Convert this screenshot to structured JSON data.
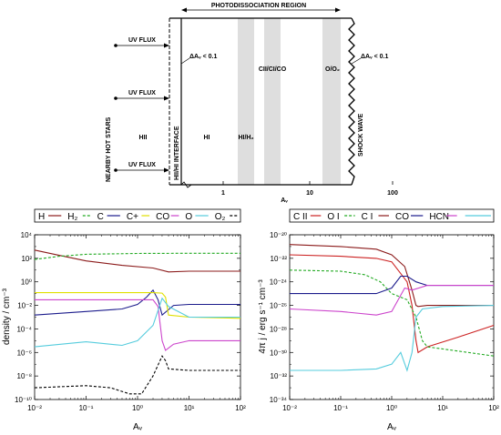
{
  "diagram": {
    "top_label": "PHOTODISSOCIATION REGION",
    "side_label": "NEARBY HOT STARS",
    "interface_label": "HII/HI INTERFACE",
    "shock_label": "SHOCK WAVE",
    "uv_flux_labels": [
      "UV FLUX",
      "UV FLUX",
      "UV FLUX"
    ],
    "region_labels": [
      "HII",
      "HI",
      "HI/H₂",
      "CII/CI/CO",
      "O/O₂"
    ],
    "delta_label_left": "ΔAᵥ < 0.1",
    "delta_label_right": "ΔAᵥ < 0.1",
    "x_ticks": [
      "1",
      "10",
      "100"
    ],
    "x_label": "Aᵥ"
  },
  "chart_data": [
    {
      "type": "line",
      "title": "",
      "xlabel": "Aᵥ",
      "ylabel": "density / cm⁻³",
      "xscale": "log",
      "yscale": "log",
      "xlim": [
        0.01,
        100
      ],
      "ylim": [
        1e-10,
        10000.0
      ],
      "x_tick_labels": [
        "10⁻²",
        "10⁻¹",
        "10⁰",
        "10¹",
        "10²"
      ],
      "y_tick_labels": [
        "10⁻¹⁰",
        "10⁻⁸",
        "10⁻⁶",
        "10⁻⁴",
        "10⁻²",
        "10⁰",
        "10²",
        "10⁴"
      ],
      "legend_placement": "top",
      "series": [
        {
          "name": "H",
          "color": "#8b1a1a",
          "dash": "solid",
          "points": [
            [
              0.01,
              500
            ],
            [
              0.03,
              180
            ],
            [
              0.1,
              60
            ],
            [
              0.5,
              25
            ],
            [
              2,
              15
            ],
            [
              4,
              7
            ],
            [
              10,
              8
            ],
            [
              100,
              8
            ]
          ]
        },
        {
          "name": "H₂",
          "color": "#22aa22",
          "dash": "dashed",
          "points": [
            [
              0.01,
              80
            ],
            [
              0.03,
              150
            ],
            [
              0.1,
              220
            ],
            [
              1,
              260
            ],
            [
              10,
              270
            ],
            [
              100,
              270
            ]
          ]
        },
        {
          "name": "C",
          "color": "#1c1c8c",
          "dash": "solid",
          "points": [
            [
              0.01,
              0.0015
            ],
            [
              0.1,
              0.003
            ],
            [
              0.5,
              0.005
            ],
            [
              1,
              0.012
            ],
            [
              1.5,
              0.05
            ],
            [
              2,
              0.2
            ],
            [
              2.5,
              0.03
            ],
            [
              3,
              0.0015
            ],
            [
              5,
              0.01
            ],
            [
              10,
              0.012
            ],
            [
              100,
              0.012
            ]
          ]
        },
        {
          "name": "C+",
          "color": "#e0e000",
          "dash": "solid",
          "points": [
            [
              0.01,
              0.12
            ],
            [
              0.5,
              0.12
            ],
            [
              2,
              0.12
            ],
            [
              3,
              0.11
            ],
            [
              3.5,
              0.05
            ],
            [
              4,
              0.0015
            ],
            [
              10,
              0.001
            ],
            [
              100,
              0.0008
            ]
          ]
        },
        {
          "name": "CO",
          "color": "#cc44cc",
          "dash": "solid",
          "points": [
            [
              0.01,
              0.03
            ],
            [
              1,
              0.03
            ],
            [
              2,
              0.03
            ],
            [
              2.5,
              0.008
            ],
            [
              3,
              1e-05
            ],
            [
              3.5,
              1.5e-06
            ],
            [
              5,
              5e-06
            ],
            [
              10,
              1e-05
            ],
            [
              100,
              1e-05
            ]
          ]
        },
        {
          "name": "O",
          "color": "#55ccdd",
          "dash": "solid",
          "points": [
            [
              0.01,
              3e-06
            ],
            [
              0.1,
              8e-06
            ],
            [
              0.5,
              4e-06
            ],
            [
              1,
              1e-05
            ],
            [
              2,
              0.0002
            ],
            [
              3,
              0.04
            ],
            [
              4,
              0.008
            ],
            [
              10,
              0.001
            ],
            [
              100,
              0.001
            ]
          ]
        },
        {
          "name": "O₂",
          "color": "#000000",
          "dash": "dashed",
          "points": [
            [
              0.01,
              1e-09
            ],
            [
              0.1,
              1.5e-09
            ],
            [
              0.3,
              1e-09
            ],
            [
              0.7,
              3e-10
            ],
            [
              1.2,
              3e-10
            ],
            [
              2,
              1e-08
            ],
            [
              3,
              5e-07
            ],
            [
              3.5,
              2e-07
            ],
            [
              4,
              4e-08
            ],
            [
              10,
              3e-08
            ],
            [
              100,
              3e-08
            ]
          ]
        }
      ]
    },
    {
      "type": "line",
      "title": "",
      "xlabel": "Aᵥ",
      "ylabel": "4π j / erg s⁻¹ cm⁻³",
      "xscale": "log",
      "yscale": "log",
      "xlim": [
        0.01,
        100
      ],
      "ylim": [
        1e-34,
        1e-20
      ],
      "x_tick_labels": [
        "10⁻²",
        "10⁻¹",
        "10⁰",
        "10¹",
        "10²"
      ],
      "y_tick_labels": [
        "10⁻³⁴",
        "10⁻³²",
        "10⁻³⁰",
        "10⁻²⁸",
        "10⁻²⁶",
        "10⁻²⁴",
        "10⁻²²",
        "10⁻²⁰"
      ],
      "legend_placement": "top",
      "series": [
        {
          "name": "C II",
          "color": "#cc2222",
          "dash": "solid",
          "points": [
            [
              0.01,
              2e-22
            ],
            [
              0.1,
              1.5e-22
            ],
            [
              0.5,
              1e-22
            ],
            [
              1,
              5e-23
            ],
            [
              2,
              1e-24
            ],
            [
              2.5,
              1e-26
            ],
            [
              3,
              1e-29
            ],
            [
              3.3,
              1e-30
            ],
            [
              5,
              3e-30
            ],
            [
              20,
              2e-29
            ],
            [
              100,
              2e-28
            ]
          ]
        },
        {
          "name": "O I",
          "color": "#22aa22",
          "dash": "dashed",
          "points": [
            [
              0.01,
              1e-23
            ],
            [
              0.1,
              8e-24
            ],
            [
              0.3,
              4e-24
            ],
            [
              0.6,
              1e-24
            ],
            [
              1,
              1e-25
            ],
            [
              2,
              3e-26
            ],
            [
              3,
              1e-27
            ],
            [
              4,
              1e-29
            ],
            [
              5,
              3e-30
            ],
            [
              100,
              5e-31
            ]
          ]
        },
        {
          "name": "C I",
          "color": "#8b1a1a",
          "dash": "solid",
          "points": [
            [
              0.01,
              1.5e-21
            ],
            [
              0.1,
              1e-21
            ],
            [
              0.5,
              6e-22
            ],
            [
              1,
              2e-22
            ],
            [
              1.8,
              2e-23
            ],
            [
              2.5,
              2e-25
            ],
            [
              3,
              1e-26
            ],
            [
              3.3,
              8e-27
            ],
            [
              5,
              1e-26
            ],
            [
              100,
              1e-26
            ]
          ]
        },
        {
          "name": "CO",
          "color": "#1c1c8c",
          "dash": "solid",
          "points": [
            [
              0.01,
              1e-25
            ],
            [
              0.5,
              1e-25
            ],
            [
              1,
              3e-25
            ],
            [
              1.5,
              3e-24
            ],
            [
              2,
              3e-24
            ],
            [
              3,
              1e-24
            ],
            [
              5,
              5e-25
            ],
            [
              100,
              5e-25
            ]
          ]
        },
        {
          "name": "HCN",
          "color": "#cc44cc",
          "dash": "solid",
          "points": [
            [
              0.01,
              5e-27
            ],
            [
              0.1,
              3e-27
            ],
            [
              0.5,
              1.5e-27
            ],
            [
              1,
              3e-27
            ],
            [
              1.8,
              3e-25
            ],
            [
              2.5,
              2e-25
            ],
            [
              5,
              5e-25
            ],
            [
              100,
              5e-25
            ]
          ]
        },
        {
          "name": "",
          "color": "#55ccdd",
          "dash": "solid",
          "points": [
            [
              0.01,
              3e-32
            ],
            [
              0.1,
              3e-32
            ],
            [
              0.5,
              4e-32
            ],
            [
              1,
              1e-31
            ],
            [
              1.5,
              1e-30
            ],
            [
              2,
              3e-32
            ],
            [
              2.5,
              1e-30
            ],
            [
              3,
              1e-27
            ],
            [
              4,
              5e-27
            ],
            [
              10,
              8e-27
            ],
            [
              100,
              1e-26
            ]
          ]
        }
      ]
    }
  ]
}
